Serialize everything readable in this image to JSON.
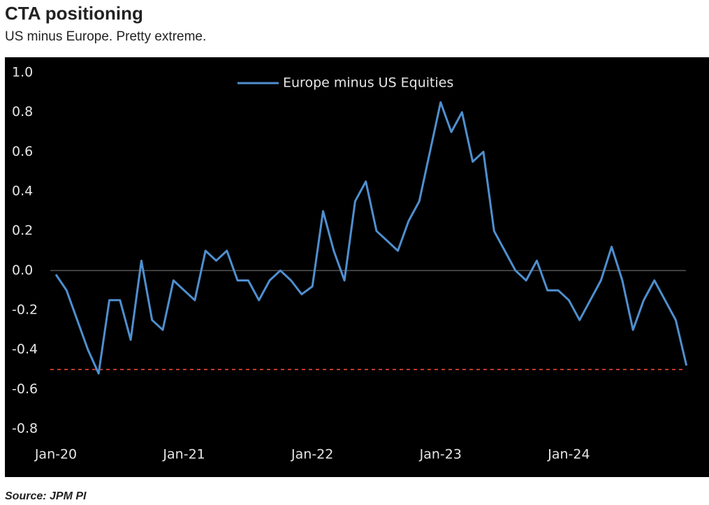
{
  "chart_data": {
    "type": "line",
    "title": "CTA positioning",
    "subtitle": "US minus Europe. Pretty extreme.",
    "source": "Source: JPM PI",
    "x": [
      "2020-01",
      "2020-02",
      "2020-03",
      "2020-04",
      "2020-05",
      "2020-06",
      "2020-07",
      "2020-08",
      "2020-09",
      "2020-10",
      "2020-11",
      "2020-12",
      "2021-01",
      "2021-02",
      "2021-03",
      "2021-04",
      "2021-05",
      "2021-06",
      "2021-07",
      "2021-08",
      "2021-09",
      "2021-10",
      "2021-11",
      "2021-12",
      "2022-01",
      "2022-02",
      "2022-03",
      "2022-04",
      "2022-05",
      "2022-06",
      "2022-07",
      "2022-08",
      "2022-09",
      "2022-10",
      "2022-11",
      "2022-12",
      "2023-01",
      "2023-02",
      "2023-03",
      "2023-04",
      "2023-05",
      "2023-06",
      "2023-07",
      "2023-08",
      "2023-09",
      "2023-10",
      "2023-11",
      "2023-12",
      "2024-01",
      "2024-02",
      "2024-03",
      "2024-04",
      "2024-05",
      "2024-06",
      "2024-07",
      "2024-08",
      "2024-09",
      "2024-10",
      "2024-11",
      "2024-12"
    ],
    "series": [
      {
        "name": "Europe minus US Equities",
        "color": "#4f8fcf",
        "values": [
          -0.02,
          -0.1,
          -0.25,
          -0.4,
          -0.52,
          -0.15,
          -0.15,
          -0.35,
          0.05,
          -0.25,
          -0.3,
          -0.05,
          -0.1,
          -0.15,
          0.1,
          0.05,
          0.1,
          -0.05,
          -0.05,
          -0.15,
          -0.05,
          0.0,
          -0.05,
          -0.12,
          -0.08,
          0.3,
          0.1,
          -0.05,
          0.35,
          0.45,
          0.2,
          0.15,
          0.1,
          0.25,
          0.35,
          0.6,
          0.85,
          0.7,
          0.8,
          0.55,
          0.6,
          0.2,
          0.1,
          0.0,
          -0.05,
          0.05,
          -0.1,
          -0.1,
          -0.15,
          -0.25,
          -0.15,
          -0.05,
          0.12,
          -0.05,
          -0.3,
          -0.15,
          -0.05,
          -0.15,
          -0.25,
          -0.48
        ]
      }
    ],
    "ylim": [
      -0.8,
      1.0
    ],
    "yticks": [
      {
        "value": 1.0,
        "label": "1.0"
      },
      0.8,
      0.6,
      0.4,
      0.2,
      {
        "value": 0.0,
        "label": "0.0"
      },
      -0.2,
      -0.4,
      -0.6,
      -0.8
    ],
    "xticks": [
      {
        "value": "2020-01",
        "label": "Jan-20"
      },
      {
        "value": "2021-01",
        "label": "Jan-21"
      },
      {
        "value": "2022-01",
        "label": "Jan-22"
      },
      {
        "value": "2023-01",
        "label": "Jan-23"
      },
      {
        "value": "2024-01",
        "label": "Jan-24"
      }
    ],
    "hlines": [
      {
        "value": 0,
        "color": "#555555",
        "dashed": false
      },
      {
        "value": -0.5,
        "color": "#c0392b",
        "dashed": true
      }
    ],
    "legend": "top"
  }
}
